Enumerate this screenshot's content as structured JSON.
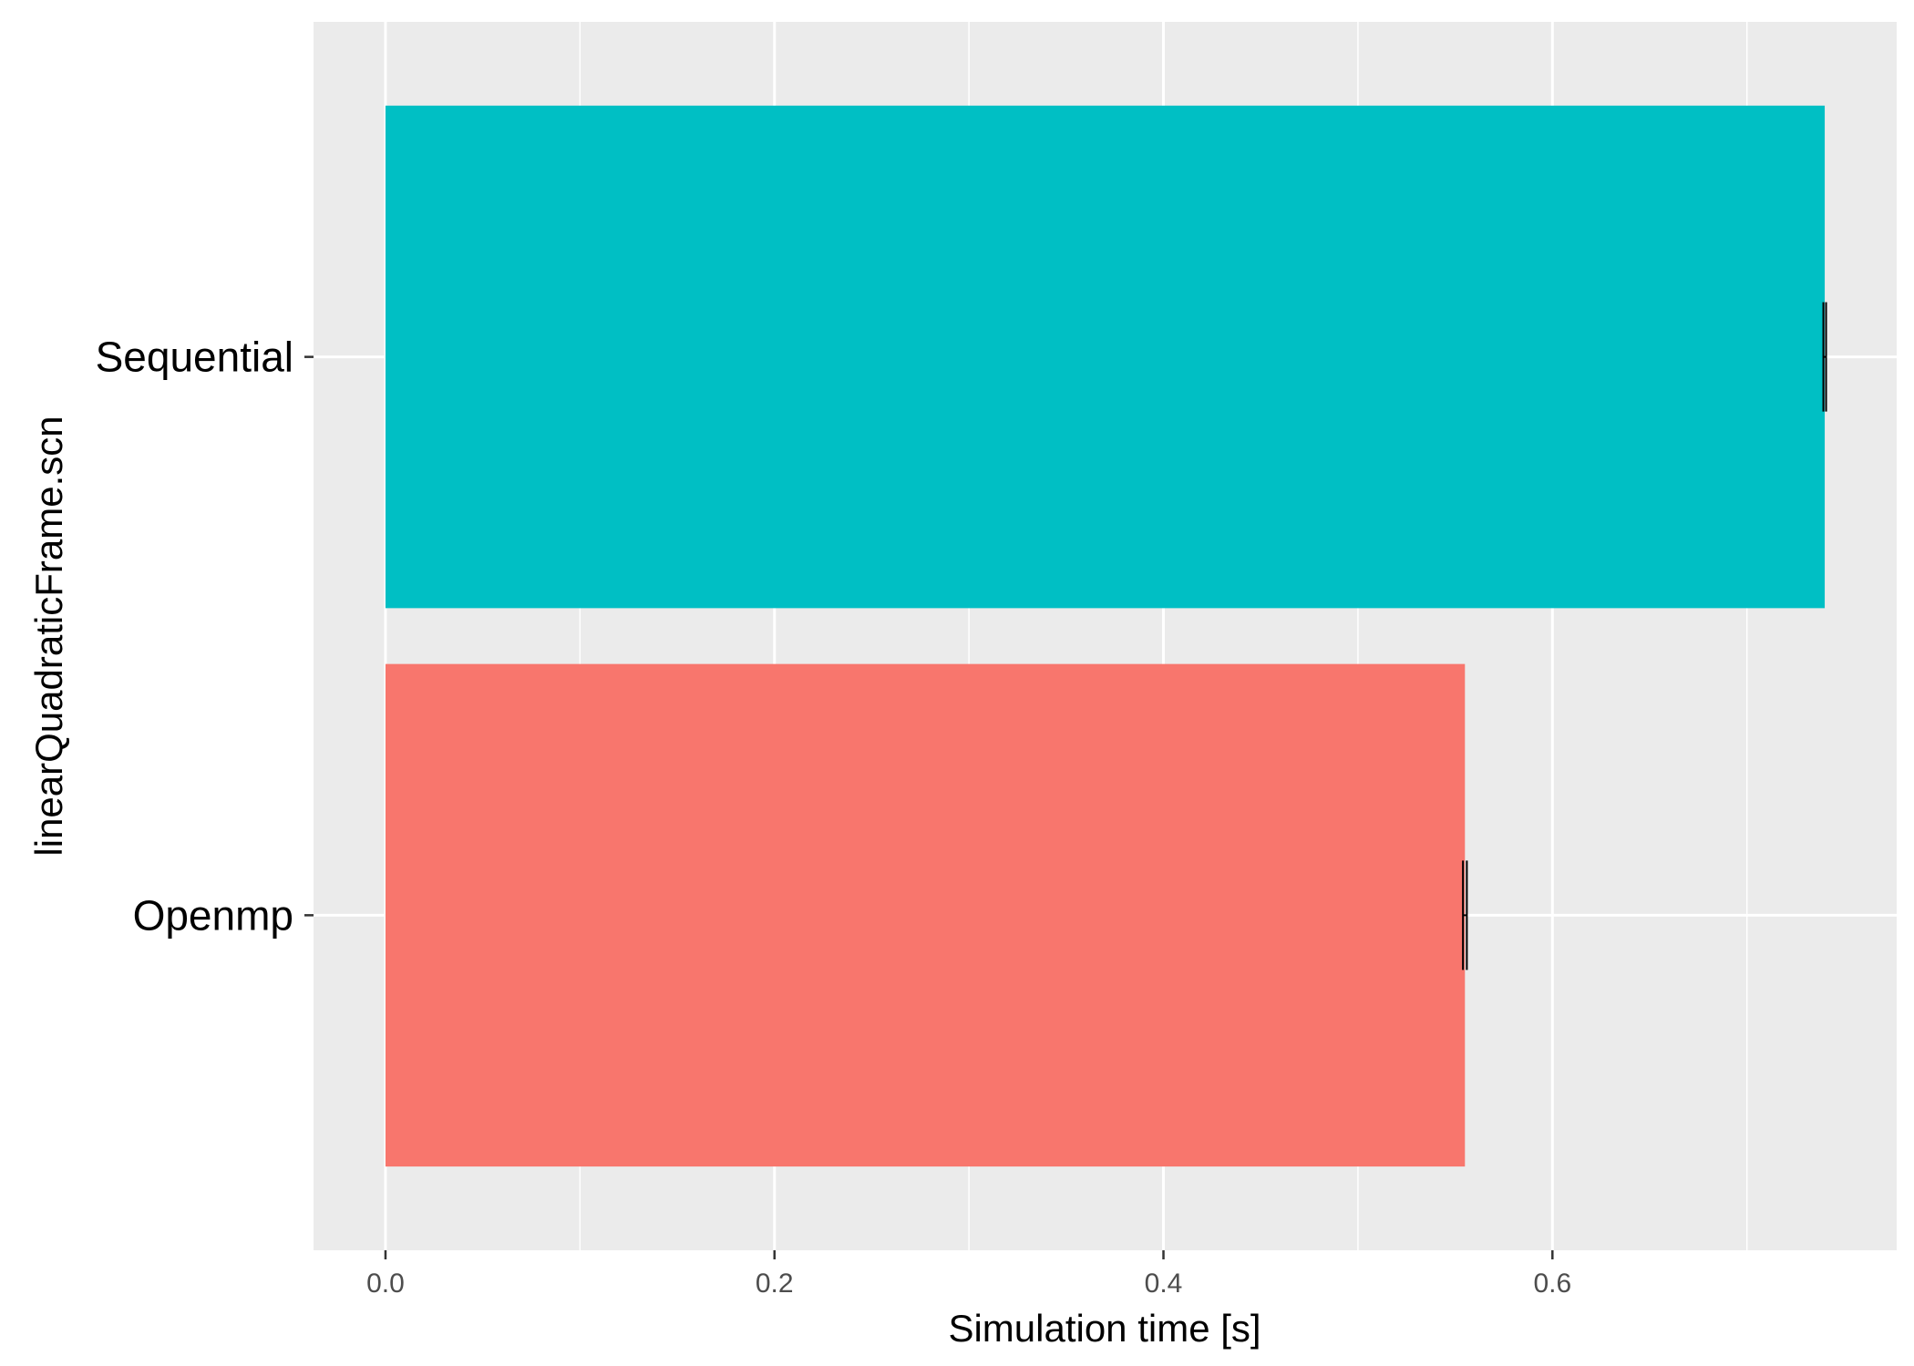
{
  "chart_data": {
    "type": "bar",
    "orientation": "horizontal",
    "title": "",
    "xlabel": "Simulation time [s]",
    "ylabel": "linearQuadraticFrame.scn",
    "xlim": [
      -0.037,
      0.777
    ],
    "x_ticks": [
      0.0,
      0.2,
      0.4,
      0.6
    ],
    "x_tick_labels": [
      "0.0",
      "0.2",
      "0.4",
      "0.6"
    ],
    "x_minor_ticks": [
      0.1,
      0.3,
      0.5,
      0.7
    ],
    "categories": [
      "Sequential",
      "Openmp"
    ],
    "values": [
      0.74,
      0.555
    ],
    "errors": [
      0.0007,
      0.001
    ],
    "colors": [
      "#00BFC4",
      "#F8766D"
    ],
    "background": "#EBEBEB",
    "grid": true,
    "legend": "none"
  }
}
